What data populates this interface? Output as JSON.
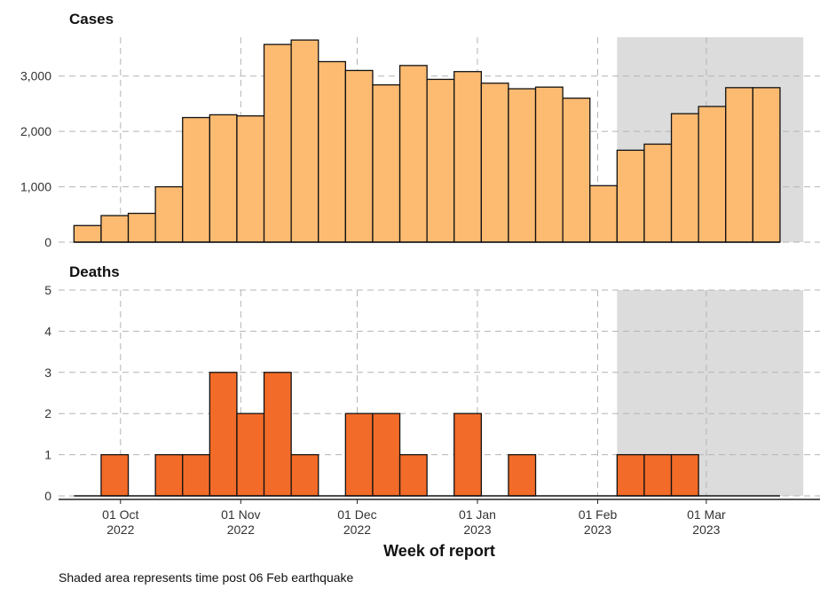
{
  "caption": "Shaded area represents time post 06 Feb earthquake",
  "x_axis_title": "Week of report",
  "x_ticks": [
    {
      "line1": "01 Oct",
      "line2": "2022",
      "date": "2022-10-01"
    },
    {
      "line1": "01 Nov",
      "line2": "2022",
      "date": "2022-11-01"
    },
    {
      "line1": "01 Dec",
      "line2": "2022",
      "date": "2022-12-01"
    },
    {
      "line1": "01 Jan",
      "line2": "2023",
      "date": "2023-01-01"
    },
    {
      "line1": "01 Feb",
      "line2": "2023",
      "date": "2023-02-01"
    },
    {
      "line1": "01 Mar",
      "line2": "2023",
      "date": "2023-03-01"
    }
  ],
  "shaded_period": {
    "start": "2023-02-06",
    "end": "2023-03-26",
    "color": "#dcdcdc"
  },
  "chart_data": [
    {
      "type": "bar",
      "title": "Cases",
      "x": [
        "2022-09-19",
        "2022-09-26",
        "2022-10-03",
        "2022-10-10",
        "2022-10-17",
        "2022-10-24",
        "2022-10-31",
        "2022-11-07",
        "2022-11-14",
        "2022-11-21",
        "2022-11-28",
        "2022-12-05",
        "2022-12-12",
        "2022-12-19",
        "2022-12-26",
        "2023-01-02",
        "2023-01-09",
        "2023-01-16",
        "2023-01-23",
        "2023-01-30",
        "2023-02-06",
        "2023-02-13",
        "2023-02-20",
        "2023-02-27",
        "2023-03-06",
        "2023-03-13"
      ],
      "values": [
        300,
        480,
        520,
        1000,
        2250,
        2300,
        2280,
        3570,
        3650,
        3260,
        3100,
        2840,
        3190,
        2940,
        3080,
        2870,
        2770,
        2800,
        2600,
        1020,
        1660,
        1770,
        2320,
        2450,
        2790,
        2790
      ],
      "ylim": [
        0,
        3700
      ],
      "yticks": [
        0,
        1000,
        2000,
        3000
      ],
      "ytick_labels": [
        "0",
        "1,000",
        "2,000",
        "3,000"
      ],
      "color": "#fdbb72",
      "grid": true
    },
    {
      "type": "bar",
      "title": "Deaths",
      "x": [
        "2022-09-19",
        "2022-09-26",
        "2022-10-03",
        "2022-10-10",
        "2022-10-17",
        "2022-10-24",
        "2022-10-31",
        "2022-11-07",
        "2022-11-14",
        "2022-11-21",
        "2022-11-28",
        "2022-12-05",
        "2022-12-12",
        "2022-12-19",
        "2022-12-26",
        "2023-01-02",
        "2023-01-09",
        "2023-01-16",
        "2023-01-23",
        "2023-01-30",
        "2023-02-06",
        "2023-02-13",
        "2023-02-20",
        "2023-02-27",
        "2023-03-06",
        "2023-03-13"
      ],
      "values": [
        0,
        1,
        0,
        1,
        1,
        3,
        2,
        3,
        1,
        0,
        2,
        2,
        1,
        0,
        2,
        0,
        1,
        0,
        0,
        0,
        1,
        1,
        1,
        0,
        0,
        0
      ],
      "ylim": [
        0,
        5
      ],
      "yticks": [
        0,
        1,
        2,
        3,
        4,
        5
      ],
      "ytick_labels": [
        "0",
        "1",
        "2",
        "3",
        "4",
        "5"
      ],
      "color": "#f26b28",
      "grid": true
    }
  ]
}
